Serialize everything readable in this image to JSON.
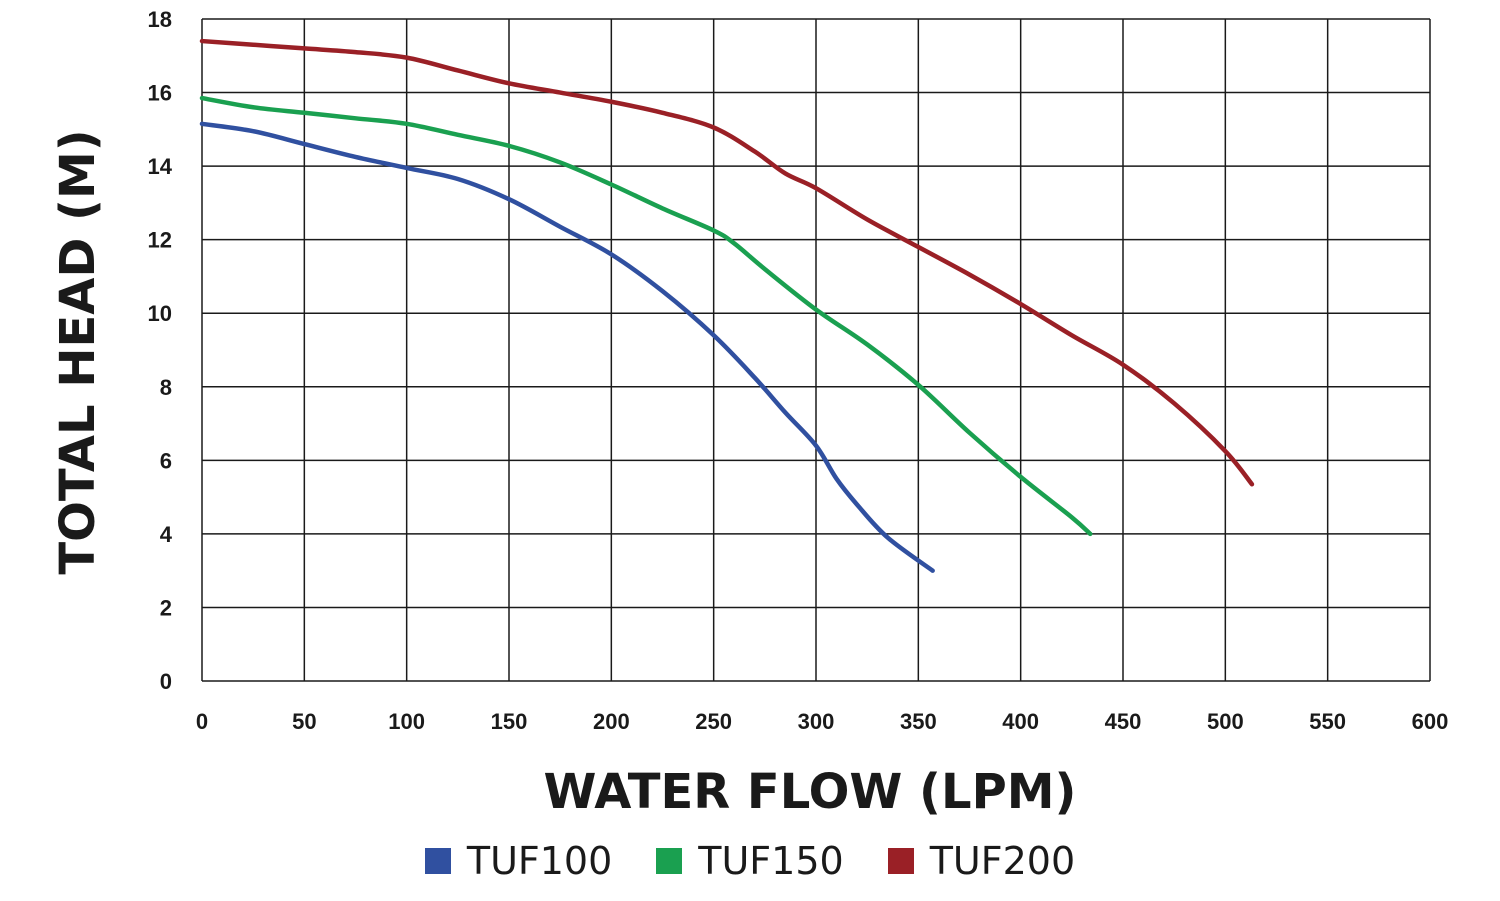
{
  "chart_data": {
    "type": "line",
    "xlabel": "WATER FLOW (LPM)",
    "ylabel": "TOTAL HEAD (M)",
    "xlim": [
      0,
      600
    ],
    "ylim": [
      0,
      18
    ],
    "xticks": [
      0,
      50,
      100,
      150,
      200,
      250,
      300,
      350,
      400,
      450,
      500,
      550,
      600
    ],
    "yticks": [
      0,
      2,
      4,
      6,
      8,
      10,
      12,
      14,
      16,
      18
    ],
    "grid": true,
    "legend_position": "bottom-center",
    "series": [
      {
        "name": "TUF100",
        "color": "#3050a0",
        "points": [
          [
            0,
            15.15
          ],
          [
            25,
            14.95
          ],
          [
            50,
            14.6
          ],
          [
            75,
            14.25
          ],
          [
            100,
            13.95
          ],
          [
            125,
            13.65
          ],
          [
            150,
            13.1
          ],
          [
            175,
            12.35
          ],
          [
            200,
            11.6
          ],
          [
            225,
            10.6
          ],
          [
            250,
            9.4
          ],
          [
            270,
            8.25
          ],
          [
            285,
            7.3
          ],
          [
            300,
            6.4
          ],
          [
            310,
            5.5
          ],
          [
            320,
            4.8
          ],
          [
            335,
            3.9
          ],
          [
            357,
            3.0
          ]
        ]
      },
      {
        "name": "TUF150",
        "color": "#1aa050",
        "points": [
          [
            0,
            15.85
          ],
          [
            25,
            15.6
          ],
          [
            50,
            15.45
          ],
          [
            75,
            15.3
          ],
          [
            100,
            15.15
          ],
          [
            125,
            14.85
          ],
          [
            150,
            14.55
          ],
          [
            175,
            14.1
          ],
          [
            200,
            13.5
          ],
          [
            225,
            12.85
          ],
          [
            250,
            12.25
          ],
          [
            260,
            11.9
          ],
          [
            275,
            11.2
          ],
          [
            300,
            10.1
          ],
          [
            325,
            9.15
          ],
          [
            350,
            8.05
          ],
          [
            375,
            6.75
          ],
          [
            400,
            5.55
          ],
          [
            425,
            4.45
          ],
          [
            434,
            4.0
          ]
        ]
      },
      {
        "name": "TUF200",
        "color": "#9a2026",
        "points": [
          [
            0,
            17.4
          ],
          [
            25,
            17.3
          ],
          [
            50,
            17.2
          ],
          [
            75,
            17.1
          ],
          [
            100,
            16.95
          ],
          [
            125,
            16.6
          ],
          [
            150,
            16.25
          ],
          [
            175,
            16.0
          ],
          [
            200,
            15.75
          ],
          [
            225,
            15.45
          ],
          [
            250,
            15.05
          ],
          [
            270,
            14.4
          ],
          [
            285,
            13.8
          ],
          [
            300,
            13.4
          ],
          [
            325,
            12.55
          ],
          [
            350,
            11.8
          ],
          [
            375,
            11.05
          ],
          [
            400,
            10.25
          ],
          [
            425,
            9.4
          ],
          [
            450,
            8.6
          ],
          [
            475,
            7.55
          ],
          [
            500,
            6.25
          ],
          [
            513,
            5.35
          ]
        ]
      }
    ]
  }
}
